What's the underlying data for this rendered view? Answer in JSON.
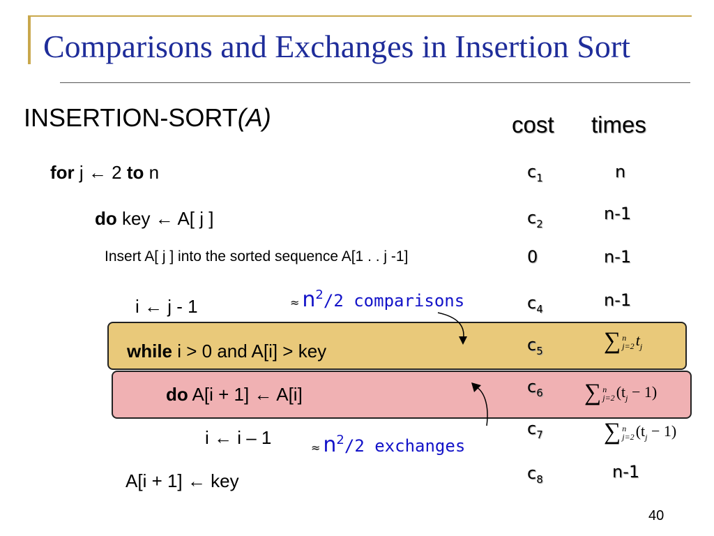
{
  "title": "Comparisons and Exchanges in Insertion Sort",
  "procedure": {
    "name": "INSERTION-SORT",
    "arg": "(A)"
  },
  "headers": {
    "cost": "cost",
    "times": "times"
  },
  "lines": {
    "l1": {
      "kw": "for",
      "mid": " j ← 2 ",
      "kw2": "to",
      "end": " n"
    },
    "l2": {
      "kw": "do",
      "rest": " key ← A[ j ]"
    },
    "l3": {
      "text": "Insert A[ j ] into the sorted sequence A[1 . . j -1]"
    },
    "l4": {
      "text": "i ← j - 1"
    },
    "l5": {
      "kw": "while",
      "rest": " i > 0 and A[i] > key"
    },
    "l6": {
      "kw": "do",
      "rest": " A[i + 1] ← A[i]"
    },
    "l7": {
      "text": "i ← i – 1"
    },
    "l8": {
      "text": "A[i + 1] ← key"
    }
  },
  "costs": [
    {
      "base": "c",
      "sub": "1"
    },
    {
      "base": "c",
      "sub": "2"
    },
    {
      "base": "0",
      "sub": ""
    },
    {
      "base": "c",
      "sub": "4"
    },
    {
      "base": "c",
      "sub": "5"
    },
    {
      "base": "c",
      "sub": "6"
    },
    {
      "base": "c",
      "sub": "7"
    },
    {
      "base": "c",
      "sub": "8"
    }
  ],
  "times": {
    "t1": "n",
    "t2": "n-1",
    "t3": "n-1",
    "t4": "n-1",
    "t8": "n-1"
  },
  "sums": {
    "s5": {
      "sig": "∑",
      "upper": "n",
      "lower": "j=2",
      "t": "t",
      "sub": "j",
      "tail": ""
    },
    "s6": {
      "sig": "∑",
      "upper": "n",
      "lower": "j=2",
      "t": "(t",
      "sub": "j",
      "tail": " − 1)"
    },
    "s7": {
      "sig": "∑",
      "upper": "n",
      "lower": "j=2",
      "t": "(t",
      "sub": "j",
      "tail": " − 1)"
    }
  },
  "notes": {
    "comparisons": {
      "approx": "≈",
      "n": "n",
      "exp": "2",
      "frac": "/2",
      "word": " comparisons"
    },
    "exchanges": {
      "approx": "≈",
      "n": "n",
      "exp": "2",
      "frac": "/2",
      "word": " exchanges"
    }
  },
  "colors": {
    "title": "#1f2d9a",
    "note": "#1212c8",
    "while_box": "#e9c97a",
    "do_box": "#f0b1b3",
    "accent": "#c9a84c"
  },
  "page_number": "40"
}
